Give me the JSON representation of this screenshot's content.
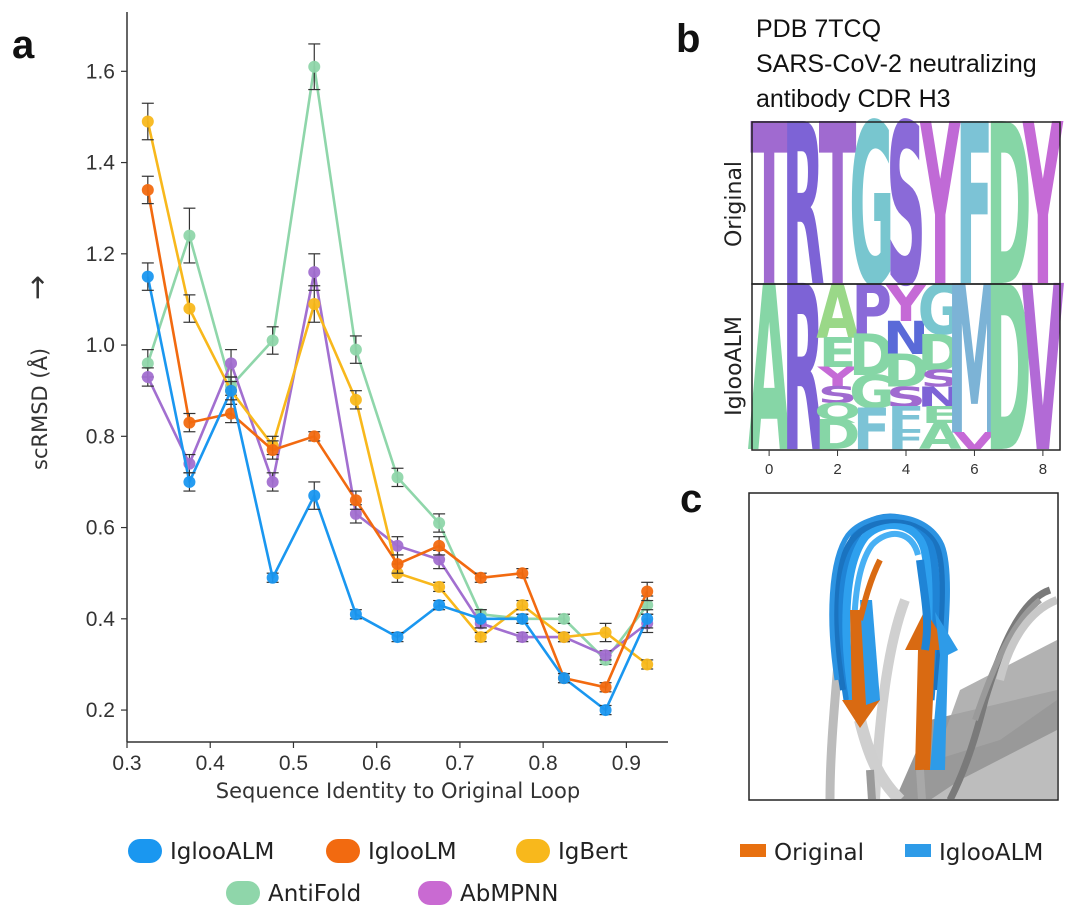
{
  "panel_labels": {
    "a": "a",
    "b": "b",
    "c": "c"
  },
  "chart_data": {
    "type": "line",
    "xlabel": "Sequence Identity to Original Loop",
    "ylabel": "scRMSD (Å)",
    "ylabel_arrow": "→",
    "xlim": [
      0.3,
      0.95
    ],
    "ylim": [
      0.13,
      1.73
    ],
    "xticks": [
      0.3,
      0.4,
      0.5,
      0.6,
      0.7,
      0.8,
      0.9
    ],
    "xtick_labels": [
      "0.3",
      "0.4",
      "0.5",
      "0.6",
      "0.7",
      "0.8",
      "0.9"
    ],
    "yticks": [
      0.2,
      0.4,
      0.6,
      0.8,
      1.0,
      1.2,
      1.4,
      1.6
    ],
    "ytick_labels": [
      "0.2",
      "0.4",
      "0.6",
      "0.8",
      "1.0",
      "1.2",
      "1.4",
      "1.6"
    ],
    "x": [
      0.325,
      0.375,
      0.425,
      0.475,
      0.525,
      0.575,
      0.625,
      0.675,
      0.725,
      0.775,
      0.825,
      0.875,
      0.925
    ],
    "series": [
      {
        "name": "AntiFold",
        "color": "#8fd6aa",
        "values": [
          0.96,
          1.24,
          0.91,
          1.01,
          1.61,
          0.99,
          0.71,
          0.61,
          0.41,
          0.4,
          0.4,
          0.31,
          0.43
        ],
        "errors": [
          0.03,
          0.06,
          0.02,
          0.03,
          0.05,
          0.03,
          0.02,
          0.02,
          0.01,
          0.01,
          0.01,
          0.01,
          0.02
        ]
      },
      {
        "name": "AbMPNN",
        "color": "#a26fd0",
        "values": [
          0.93,
          0.74,
          0.96,
          0.7,
          1.16,
          0.63,
          0.56,
          0.53,
          0.39,
          0.36,
          0.36,
          0.32,
          0.39
        ],
        "errors": [
          0.02,
          0.02,
          0.03,
          0.02,
          0.04,
          0.02,
          0.02,
          0.02,
          0.01,
          0.01,
          0.01,
          0.01,
          0.02
        ]
      },
      {
        "name": "IgBert",
        "color": "#f8b81c",
        "values": [
          1.49,
          1.08,
          0.9,
          0.78,
          1.09,
          0.88,
          0.5,
          0.47,
          0.36,
          0.43,
          0.36,
          0.37,
          0.3
        ],
        "errors": [
          0.04,
          0.03,
          0.03,
          0.02,
          0.04,
          0.02,
          0.02,
          0.01,
          0.01,
          0.01,
          0.01,
          0.02,
          0.01
        ]
      },
      {
        "name": "IglooLM",
        "color": "#f26a10",
        "values": [
          1.34,
          0.83,
          0.85,
          0.77,
          0.8,
          0.66,
          0.52,
          0.56,
          0.49,
          0.5,
          0.27,
          0.25,
          0.46
        ],
        "errors": [
          0.03,
          0.02,
          0.02,
          0.02,
          0.01,
          0.02,
          0.02,
          0.02,
          0.01,
          0.01,
          0.01,
          0.01,
          0.02
        ]
      },
      {
        "name": "IglooALM",
        "color": "#1a97f0",
        "values": [
          1.15,
          0.7,
          0.9,
          0.49,
          0.67,
          0.41,
          0.36,
          0.43,
          0.4,
          0.4,
          0.27,
          0.2,
          0.4
        ],
        "errors": [
          0.03,
          0.02,
          0.02,
          0.01,
          0.03,
          0.01,
          0.01,
          0.01,
          0.02,
          0.01,
          0.01,
          0.01,
          0.02
        ]
      }
    ],
    "legend": [
      {
        "name": "IglooALM",
        "color": "#1a97f0"
      },
      {
        "name": "IglooLM",
        "color": "#f26a10"
      },
      {
        "name": "IgBert",
        "color": "#f8b81c"
      },
      {
        "name": "AntiFold",
        "color": "#8fd6aa"
      },
      {
        "name": "AbMPNN",
        "color": "#c96ad2"
      }
    ]
  },
  "logo": {
    "title_lines": [
      "PDB 7TCQ",
      "SARS-CoV-2 neutralizing",
      "antibody CDR H3"
    ],
    "row_labels": [
      "Original",
      "IglooALM"
    ],
    "x_ticks": [
      "0",
      "2",
      "4",
      "6",
      "8"
    ],
    "original": [
      "T",
      "R",
      "T",
      "G",
      "S",
      "Y",
      "F",
      "D",
      "Y"
    ],
    "original_colors": [
      "#a06ad0",
      "#7d63d6",
      "#a06ad0",
      "#78c6cf",
      "#8a6ad8",
      "#c06ad6",
      "#7cc3d6",
      "#86d6a6",
      "#c56ad6"
    ],
    "iglooalm": [
      [
        {
          "l": "A",
          "f": 1.0,
          "c": "#86d6a6"
        }
      ],
      [
        {
          "l": "R",
          "f": 1.0,
          "c": "#7d63d6"
        }
      ],
      [
        {
          "l": "A",
          "f": 0.32,
          "c": "#9ad888"
        },
        {
          "l": "E",
          "f": 0.18,
          "c": "#86d6a6"
        },
        {
          "l": "Y",
          "f": 0.12,
          "c": "#c56ad6"
        },
        {
          "l": "S",
          "f": 0.1,
          "c": "#a06ad0"
        },
        {
          "l": "Q",
          "f": 0.1,
          "c": "#86d6a6"
        },
        {
          "l": "D",
          "f": 0.18,
          "c": "#86d6a6"
        }
      ],
      [
        {
          "l": "P",
          "f": 0.3,
          "c": "#8a6ad8"
        },
        {
          "l": "D",
          "f": 0.25,
          "c": "#86d6a6"
        },
        {
          "l": "G",
          "f": 0.2,
          "c": "#86d6a6"
        },
        {
          "l": "F",
          "f": 0.25,
          "c": "#7cc3d6"
        }
      ],
      [
        {
          "l": "Y",
          "f": 0.22,
          "c": "#c56ad6"
        },
        {
          "l": "N",
          "f": 0.2,
          "c": "#5a6ad8"
        },
        {
          "l": "D",
          "f": 0.2,
          "c": "#86d6a6"
        },
        {
          "l": "S",
          "f": 0.12,
          "c": "#a06ad0"
        },
        {
          "l": "F",
          "f": 0.14,
          "c": "#7cc3d6"
        },
        {
          "l": "F",
          "f": 0.12,
          "c": "#7cc3d6"
        }
      ],
      [
        {
          "l": "G",
          "f": 0.3,
          "c": "#78c6cf"
        },
        {
          "l": "D",
          "f": 0.22,
          "c": "#86d6a6"
        },
        {
          "l": "S",
          "f": 0.1,
          "c": "#a06ad0"
        },
        {
          "l": "N",
          "f": 0.12,
          "c": "#7d63d6"
        },
        {
          "l": "E",
          "f": 0.1,
          "c": "#86d6a6"
        },
        {
          "l": "A",
          "f": 0.16,
          "c": "#86d6a6"
        }
      ],
      [
        {
          "l": "M",
          "f": 0.9,
          "c": "#7cb3d6"
        },
        {
          "l": "V",
          "f": 0.1,
          "c": "#c56ad6"
        }
      ],
      [
        {
          "l": "D",
          "f": 1.0,
          "c": "#86d6a6"
        }
      ],
      [
        {
          "l": "V",
          "f": 1.0,
          "c": "#b26ad6"
        }
      ]
    ]
  },
  "structure_legend": [
    {
      "name": "Original",
      "color": "#e8700f"
    },
    {
      "name": "IglooALM",
      "color": "#2e9be8"
    }
  ]
}
